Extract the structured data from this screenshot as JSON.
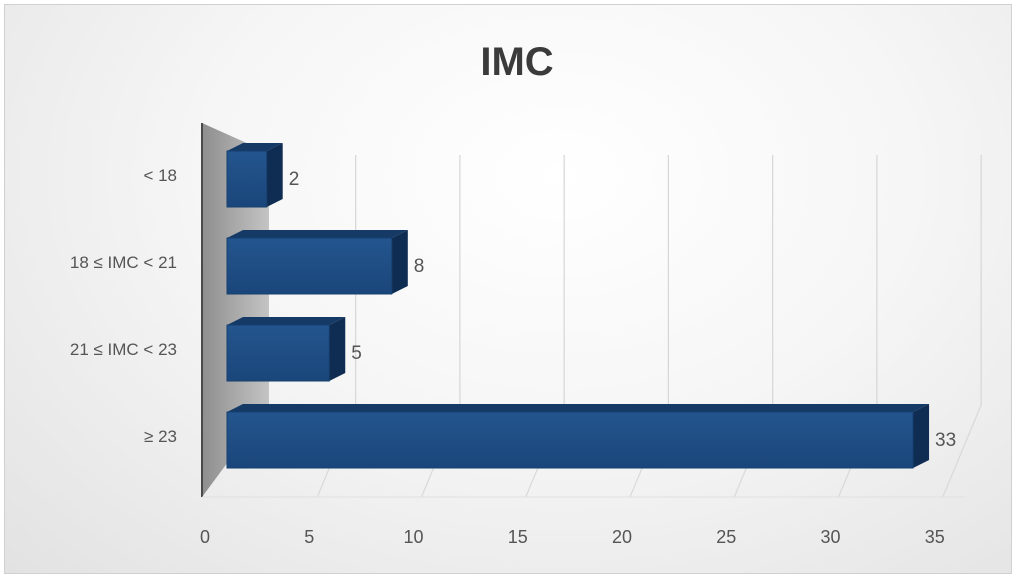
{
  "chart_data": {
    "type": "bar",
    "orientation": "horizontal",
    "style": "3d",
    "title": "IMC",
    "categories": [
      "< 18",
      "18 ≤ IMC < 21",
      "21 ≤ IMC < 23",
      "≥ 23"
    ],
    "values": [
      2,
      8,
      5,
      33
    ],
    "xlim": [
      0,
      35
    ],
    "xticks": [
      "0",
      "5",
      "10",
      "15",
      "20",
      "25",
      "30",
      "35"
    ],
    "xlabel": "",
    "ylabel": "",
    "grid": true,
    "legend": "none",
    "data_labels": true,
    "bar_color": "#1f4e85"
  }
}
